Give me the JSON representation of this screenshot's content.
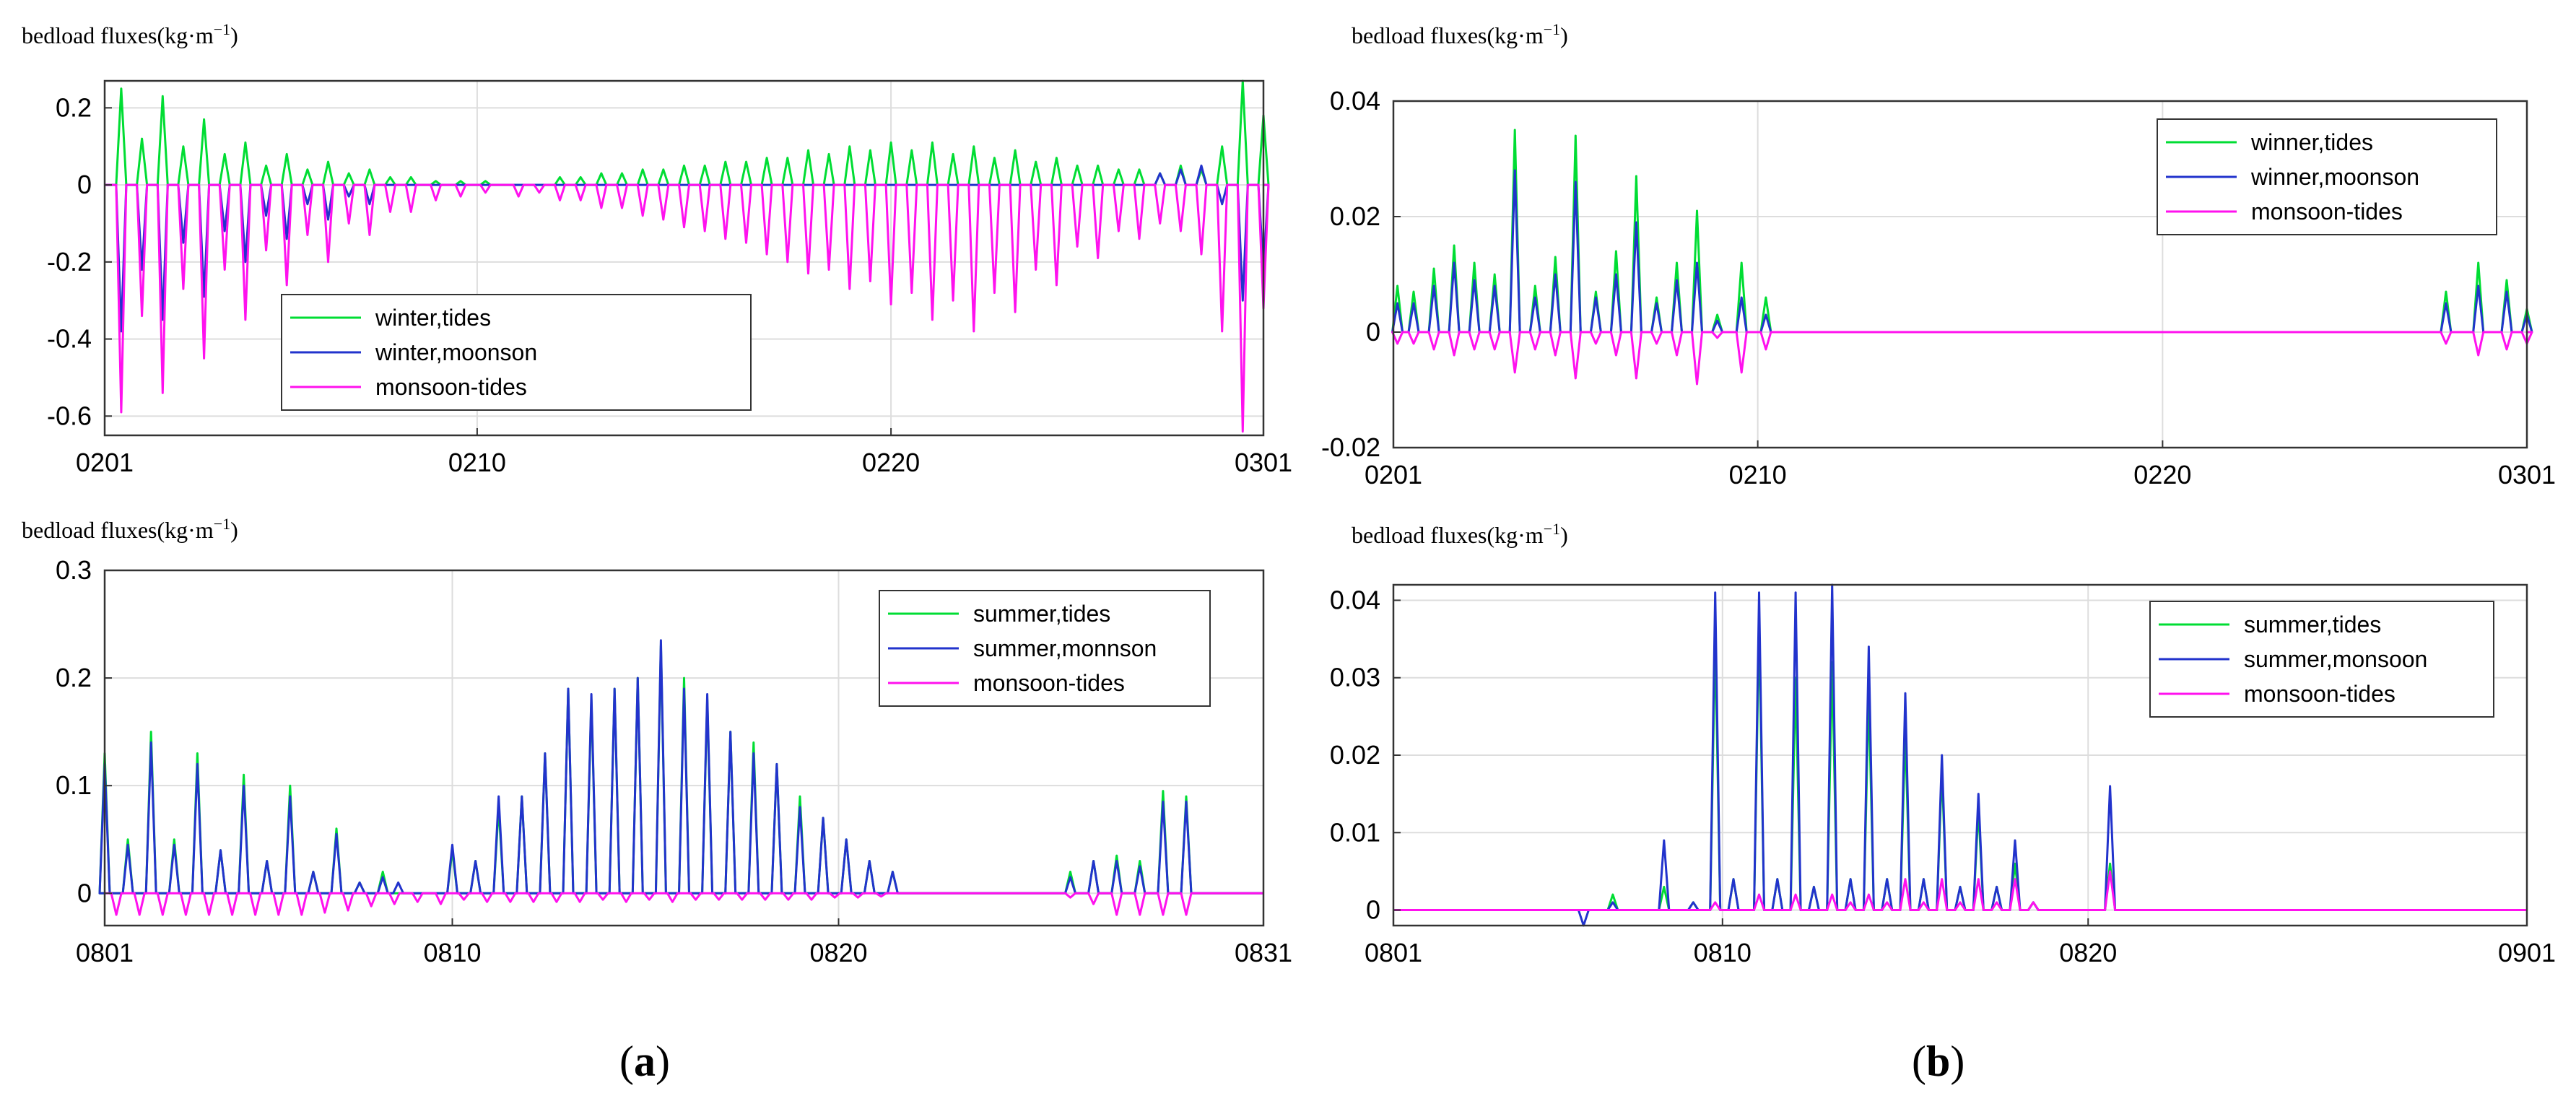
{
  "panel_labels": {
    "open": "(",
    "a": "a",
    "b": "b",
    "close": ")"
  },
  "chart_data": [
    {
      "id": "a-top",
      "type": "line",
      "y_label": "bedload fluxes(kg·m",
      "y_label_sup": "−1",
      "y_label_close": ")",
      "x_ticks": [
        "0201",
        "0210",
        "0220",
        "0301"
      ],
      "x_range": [
        0,
        28
      ],
      "x_tick_pos": [
        0,
        9,
        19,
        28
      ],
      "ylim": [
        -0.65,
        0.27
      ],
      "y_ticks": [
        -0.6,
        -0.4,
        -0.2,
        0,
        0.2
      ],
      "y_tick_labels": [
        "-0.6",
        "-0.4",
        "-0.2",
        "0",
        "0.2"
      ],
      "grid": true,
      "legend_position": "lower-left-center",
      "series": [
        {
          "name": "winter,tides",
          "color": "#00dd33",
          "sign": 1,
          "x": [
            0.4,
            0.9,
            1.4,
            1.9,
            2.4,
            2.9,
            3.4,
            3.9,
            4.4,
            4.9,
            5.4,
            5.9,
            6.4,
            6.9,
            7.4,
            8.0,
            8.6,
            9.2,
            11.0,
            11.5,
            12.0,
            12.5,
            13.0,
            13.5,
            14.0,
            14.5,
            15.0,
            15.5,
            16.0,
            16.5,
            17.0,
            17.5,
            18.0,
            18.5,
            19.0,
            19.5,
            20.0,
            20.5,
            21.0,
            21.5,
            22.0,
            22.5,
            23.0,
            23.5,
            24.0,
            24.5,
            25.0,
            25.5,
            26.0,
            26.5,
            27.0,
            27.5,
            28.0
          ],
          "y": [
            0.25,
            0.12,
            0.23,
            0.1,
            0.17,
            0.08,
            0.11,
            0.05,
            0.08,
            0.04,
            0.06,
            0.03,
            0.04,
            0.02,
            0.02,
            0.01,
            0.01,
            0.01,
            0.02,
            0.02,
            0.03,
            0.03,
            0.04,
            0.04,
            0.05,
            0.05,
            0.06,
            0.06,
            0.07,
            0.07,
            0.09,
            0.08,
            0.1,
            0.09,
            0.11,
            0.09,
            0.11,
            0.08,
            0.1,
            0.07,
            0.09,
            0.06,
            0.07,
            0.05,
            0.05,
            0.04,
            0.04,
            0.03,
            0.05,
            0.04,
            0.1,
            0.27,
            0.18
          ]
        },
        {
          "name": "winter,moonson",
          "color": "#2233cc",
          "sign": 1,
          "x": [
            0.4,
            0.9,
            1.4,
            1.9,
            2.4,
            2.9,
            3.4,
            3.9,
            4.4,
            4.9,
            5.4,
            5.9,
            6.4,
            25.5,
            26.0,
            26.5,
            27.0,
            27.5,
            28.0
          ],
          "y": [
            -0.38,
            -0.22,
            -0.35,
            -0.15,
            -0.29,
            -0.12,
            -0.2,
            -0.08,
            -0.14,
            -0.05,
            -0.09,
            -0.03,
            -0.05,
            0.03,
            0.04,
            0.05,
            -0.05,
            -0.3,
            -0.22
          ]
        },
        {
          "name": "monsoon-tides",
          "color": "#ff11ee",
          "sign": -1,
          "x": [
            0.4,
            0.9,
            1.4,
            1.9,
            2.4,
            2.9,
            3.4,
            3.9,
            4.4,
            4.9,
            5.4,
            5.9,
            6.4,
            6.9,
            7.4,
            8.0,
            8.6,
            9.2,
            10.0,
            10.5,
            11.0,
            11.5,
            12.0,
            12.5,
            13.0,
            13.5,
            14.0,
            14.5,
            15.0,
            15.5,
            16.0,
            16.5,
            17.0,
            17.5,
            18.0,
            18.5,
            19.0,
            19.5,
            20.0,
            20.5,
            21.0,
            21.5,
            22.0,
            22.5,
            23.0,
            23.5,
            24.0,
            24.5,
            25.0,
            25.5,
            26.0,
            26.5,
            27.0,
            27.5,
            28.0
          ],
          "y": [
            -0.59,
            -0.34,
            -0.54,
            -0.27,
            -0.45,
            -0.22,
            -0.35,
            -0.17,
            -0.26,
            -0.13,
            -0.2,
            -0.1,
            -0.13,
            -0.07,
            -0.07,
            -0.04,
            -0.03,
            -0.02,
            -0.03,
            -0.02,
            -0.04,
            -0.04,
            -0.06,
            -0.06,
            -0.08,
            -0.09,
            -0.11,
            -0.12,
            -0.14,
            -0.15,
            -0.18,
            -0.2,
            -0.23,
            -0.22,
            -0.27,
            -0.25,
            -0.31,
            -0.28,
            -0.35,
            -0.3,
            -0.38,
            -0.28,
            -0.33,
            -0.22,
            -0.26,
            -0.16,
            -0.19,
            -0.12,
            -0.14,
            -0.1,
            -0.12,
            -0.18,
            -0.38,
            -0.64,
            -0.32
          ]
        }
      ]
    },
    {
      "id": "a-bottom",
      "type": "line",
      "y_label": "bedload fluxes(kg·m",
      "y_label_sup": "−1",
      "y_label_close": ")",
      "x_ticks": [
        "0801",
        "0810",
        "0820",
        "0831"
      ],
      "x_range": [
        0,
        30
      ],
      "x_tick_pos": [
        0,
        9,
        19,
        30
      ],
      "ylim": [
        -0.03,
        0.3
      ],
      "y_ticks": [
        0,
        0.1,
        0.2,
        0.3
      ],
      "y_tick_labels": [
        "0",
        "0.1",
        "0.2",
        "0.3"
      ],
      "grid": true,
      "legend_position": "top-right",
      "series": [
        {
          "name": "summer,tides",
          "color": "#00dd33",
          "x": [
            0.0,
            0.6,
            1.2,
            1.8,
            2.4,
            3.0,
            3.6,
            4.2,
            4.8,
            5.4,
            6.0,
            6.6,
            7.2,
            9.0,
            9.6,
            10.2,
            10.8,
            11.4,
            12.0,
            12.6,
            13.2,
            13.8,
            14.4,
            15.0,
            15.6,
            16.2,
            16.8,
            17.4,
            18.0,
            18.6,
            19.2,
            19.8,
            20.4,
            25.0,
            25.6,
            26.2,
            26.8,
            27.4,
            28.0
          ],
          "y": [
            0.13,
            0.05,
            0.15,
            0.05,
            0.13,
            0.04,
            0.11,
            0.03,
            0.1,
            0.02,
            0.06,
            0.01,
            0.02,
            0.04,
            0.03,
            0.08,
            0.09,
            0.13,
            0.19,
            0.18,
            0.19,
            0.2,
            0.23,
            0.2,
            0.18,
            0.15,
            0.14,
            0.12,
            0.09,
            0.07,
            0.05,
            0.03,
            0.02,
            0.02,
            0.03,
            0.035,
            0.03,
            0.095,
            0.09
          ]
        },
        {
          "name": "summer,monnson",
          "color": "#2233cc",
          "x": [
            0.0,
            0.6,
            1.2,
            1.8,
            2.4,
            3.0,
            3.6,
            4.2,
            4.8,
            5.4,
            6.0,
            6.6,
            7.2,
            7.6,
            9.0,
            9.6,
            10.2,
            10.8,
            11.4,
            12.0,
            12.6,
            13.2,
            13.8,
            14.4,
            15.0,
            15.6,
            16.2,
            16.8,
            17.4,
            18.0,
            18.6,
            19.2,
            19.8,
            20.4,
            25.0,
            25.6,
            26.2,
            26.8,
            27.4,
            28.0
          ],
          "y": [
            0.12,
            0.045,
            0.14,
            0.045,
            0.12,
            0.04,
            0.1,
            0.03,
            0.09,
            0.02,
            0.055,
            0.01,
            0.015,
            0.01,
            0.045,
            0.03,
            0.09,
            0.09,
            0.13,
            0.19,
            0.185,
            0.19,
            0.2,
            0.235,
            0.19,
            0.185,
            0.15,
            0.13,
            0.12,
            0.08,
            0.07,
            0.05,
            0.03,
            0.02,
            0.015,
            0.03,
            0.03,
            0.025,
            0.085,
            0.085
          ]
        },
        {
          "name": "monsoon-tides",
          "color": "#ff11ee",
          "x": [
            0.3,
            0.9,
            1.5,
            2.1,
            2.7,
            3.3,
            3.9,
            4.5,
            5.1,
            5.7,
            6.3,
            6.9,
            7.5,
            8.1,
            8.7,
            9.3,
            9.9,
            10.5,
            11.1,
            11.7,
            12.3,
            12.9,
            13.5,
            14.1,
            14.7,
            15.3,
            15.9,
            16.5,
            17.1,
            17.7,
            18.3,
            18.9,
            19.5,
            20.1,
            25.0,
            25.6,
            26.2,
            26.8,
            27.4,
            28.0
          ],
          "y": [
            -0.02,
            -0.02,
            -0.02,
            -0.02,
            -0.02,
            -0.02,
            -0.02,
            -0.02,
            -0.02,
            -0.018,
            -0.016,
            -0.012,
            -0.01,
            -0.008,
            -0.01,
            -0.006,
            -0.008,
            -0.008,
            -0.008,
            -0.008,
            -0.008,
            -0.006,
            -0.008,
            -0.006,
            -0.008,
            -0.006,
            -0.006,
            -0.006,
            -0.006,
            -0.006,
            -0.006,
            -0.004,
            -0.004,
            -0.003,
            -0.004,
            -0.01,
            -0.02,
            -0.02,
            -0.02,
            -0.02
          ]
        }
      ]
    },
    {
      "id": "b-top",
      "type": "line",
      "y_label": "bedload fluxes(kg·m",
      "y_label_sup": "−1",
      "y_label_close": ")",
      "x_ticks": [
        "0201",
        "0210",
        "0220",
        "0301"
      ],
      "x_range": [
        0,
        28
      ],
      "x_tick_pos": [
        0,
        9,
        19,
        28
      ],
      "ylim": [
        -0.02,
        0.04
      ],
      "y_ticks": [
        -0.02,
        0,
        0.02,
        0.04
      ],
      "y_tick_labels": [
        "-0.02",
        "0",
        "0.02",
        "0.04"
      ],
      "grid": true,
      "legend_position": "top-right",
      "series": [
        {
          "name": "winner,tides",
          "color": "#00dd33",
          "x": [
            0.1,
            0.5,
            1.0,
            1.5,
            2.0,
            2.5,
            3.0,
            3.5,
            4.0,
            4.5,
            5.0,
            5.5,
            6.0,
            6.5,
            7.0,
            7.5,
            8.0,
            8.6,
            9.2,
            26.0,
            26.8,
            27.5,
            28.0
          ],
          "y": [
            0.008,
            0.007,
            0.011,
            0.015,
            0.012,
            0.01,
            0.035,
            0.008,
            0.013,
            0.034,
            0.007,
            0.014,
            0.027,
            0.006,
            0.012,
            0.021,
            0.003,
            0.012,
            0.006,
            0.007,
            0.012,
            0.009,
            0.004
          ]
        },
        {
          "name": "winner,moonson",
          "color": "#2233cc",
          "x": [
            0.1,
            0.5,
            1.0,
            1.5,
            2.0,
            2.5,
            3.0,
            3.5,
            4.0,
            4.5,
            5.0,
            5.5,
            6.0,
            6.5,
            7.0,
            7.5,
            8.0,
            8.6,
            9.2,
            26.0,
            26.8,
            27.5,
            28.0
          ],
          "y": [
            0.005,
            0.005,
            0.008,
            0.012,
            0.009,
            0.008,
            0.028,
            0.006,
            0.01,
            0.026,
            0.006,
            0.01,
            0.019,
            0.005,
            0.009,
            0.012,
            0.002,
            0.006,
            0.003,
            0.005,
            0.008,
            0.007,
            0.003
          ]
        },
        {
          "name": "monsoon-tides",
          "color": "#ff11ee",
          "x": [
            0.1,
            0.5,
            1.0,
            1.5,
            2.0,
            2.5,
            3.0,
            3.5,
            4.0,
            4.5,
            5.0,
            5.5,
            6.0,
            6.5,
            7.0,
            7.5,
            8.0,
            8.6,
            9.2,
            26.0,
            26.8,
            27.5,
            28.0
          ],
          "y": [
            -0.002,
            -0.002,
            -0.003,
            -0.004,
            -0.003,
            -0.003,
            -0.007,
            -0.003,
            -0.004,
            -0.008,
            -0.002,
            -0.004,
            -0.008,
            -0.002,
            -0.004,
            -0.009,
            -0.001,
            -0.007,
            -0.003,
            -0.002,
            -0.004,
            -0.003,
            -0.002
          ]
        }
      ]
    },
    {
      "id": "b-bottom",
      "type": "line",
      "y_label": "bedload fluxes(kg·m",
      "y_label_sup": "−1",
      "y_label_close": ")",
      "x_ticks": [
        "0801",
        "0810",
        "0820",
        "0901"
      ],
      "x_range": [
        0,
        31
      ],
      "x_tick_pos": [
        0,
        9,
        19,
        31
      ],
      "ylim": [
        -0.002,
        0.042
      ],
      "y_ticks": [
        0,
        0.01,
        0.02,
        0.03,
        0.04
      ],
      "y_tick_labels": [
        "0",
        "0.01",
        "0.02",
        "0.03",
        "0.04"
      ],
      "grid": true,
      "legend_position": "top-right",
      "series": [
        {
          "name": "summer,tides",
          "color": "#00dd33",
          "x": [
            5.2,
            6.0,
            7.4,
            8.2,
            8.8,
            9.3,
            10.0,
            10.5,
            11.0,
            11.5,
            12.0,
            12.5,
            13.0,
            13.5,
            14.0,
            14.5,
            15.0,
            15.5,
            16.0,
            16.5,
            17.0,
            17.5,
            18.0,
            19.6
          ],
          "y": [
            0.0,
            0.002,
            0.003,
            0.001,
            0.035,
            0.004,
            0.037,
            0.004,
            0.03,
            0.003,
            0.032,
            0.004,
            0.028,
            0.004,
            0.023,
            0.004,
            0.018,
            0.003,
            0.013,
            0.003,
            0.006,
            0.001,
            0.0,
            0.006
          ]
        },
        {
          "name": "summer,monsoon",
          "color": "#2233cc",
          "x": [
            5.2,
            6.0,
            7.4,
            8.2,
            8.8,
            9.3,
            10.0,
            10.5,
            11.0,
            11.5,
            12.0,
            12.5,
            13.0,
            13.5,
            14.0,
            14.5,
            15.0,
            15.5,
            16.0,
            16.5,
            17.0,
            17.5,
            18.0,
            19.6
          ],
          "y": [
            -0.002,
            0.001,
            0.009,
            0.001,
            0.041,
            0.004,
            0.041,
            0.004,
            0.041,
            0.003,
            0.042,
            0.004,
            0.034,
            0.004,
            0.028,
            0.004,
            0.02,
            0.003,
            0.015,
            0.003,
            0.009,
            0.001,
            0.0,
            0.016
          ]
        },
        {
          "name": "monsoon-tides",
          "color": "#ff11ee",
          "x": [
            8.8,
            10.0,
            11.0,
            12.0,
            12.5,
            13.0,
            13.5,
            14.0,
            14.5,
            15.0,
            15.5,
            16.0,
            16.5,
            17.0,
            17.5,
            19.6
          ],
          "y": [
            0.001,
            0.002,
            0.002,
            0.002,
            0.001,
            0.002,
            0.001,
            0.004,
            0.001,
            0.004,
            0.001,
            0.004,
            0.001,
            0.004,
            0.001,
            0.005
          ]
        }
      ]
    }
  ]
}
